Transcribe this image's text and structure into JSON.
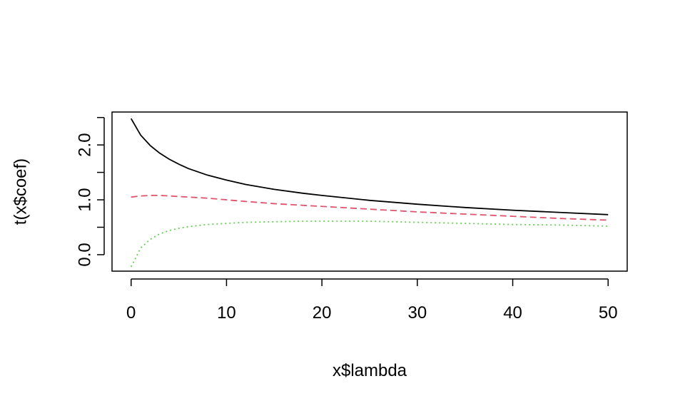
{
  "chart_data": {
    "type": "line",
    "title": "",
    "xlabel": "x$lambda",
    "ylabel": "t(x$coef)",
    "xlim": [
      -2,
      52
    ],
    "ylim": [
      -0.3,
      2.6
    ],
    "x_ticks": [
      0,
      10,
      20,
      30,
      40,
      50
    ],
    "x_tick_labels": [
      "0",
      "10",
      "20",
      "30",
      "40",
      "50"
    ],
    "y_ticks": [
      0.0,
      0.5,
      1.0,
      1.5,
      2.0,
      2.5
    ],
    "y_tick_labels": [
      "0.0",
      "",
      "1.0",
      "",
      "2.0",
      ""
    ],
    "grid": false,
    "legend": "none",
    "x": [
      0,
      1,
      2,
      3,
      4,
      5,
      6,
      8,
      10,
      12,
      15,
      18,
      20,
      25,
      30,
      35,
      40,
      45,
      50
    ],
    "series": [
      {
        "color": "#000000",
        "dash": "solid",
        "values": [
          2.48,
          2.18,
          1.99,
          1.85,
          1.74,
          1.65,
          1.57,
          1.45,
          1.36,
          1.28,
          1.19,
          1.12,
          1.08,
          0.99,
          0.92,
          0.86,
          0.81,
          0.77,
          0.73
        ]
      },
      {
        "color": "#DF536B",
        "dash": "dashed",
        "values": [
          1.05,
          1.07,
          1.08,
          1.08,
          1.07,
          1.06,
          1.05,
          1.03,
          1.0,
          0.97,
          0.93,
          0.9,
          0.88,
          0.83,
          0.78,
          0.74,
          0.7,
          0.66,
          0.63
        ]
      },
      {
        "color": "#61D04F",
        "dash": "dotted",
        "values": [
          -0.22,
          0.12,
          0.28,
          0.38,
          0.44,
          0.48,
          0.51,
          0.55,
          0.57,
          0.59,
          0.6,
          0.61,
          0.61,
          0.61,
          0.59,
          0.57,
          0.55,
          0.54,
          0.52
        ]
      }
    ]
  }
}
